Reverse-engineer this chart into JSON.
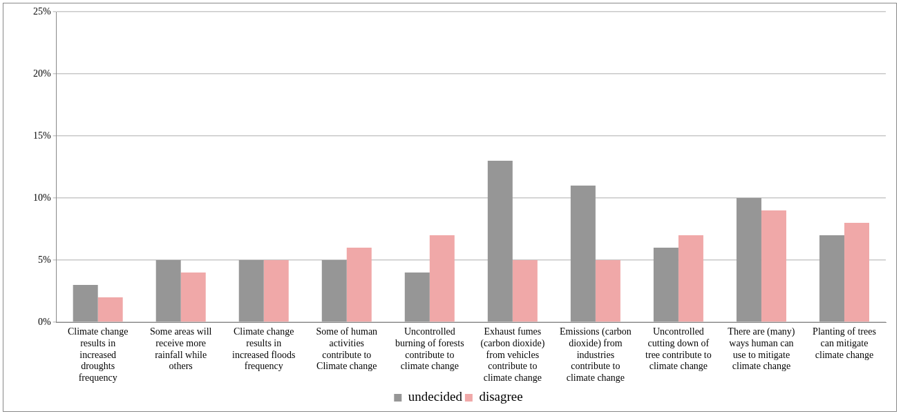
{
  "chart_data": {
    "type": "bar",
    "categories": [
      "Climate change results in increased droughts frequency",
      "Some areas will receive more rainfall while others",
      "Climate change results in increased floods frequency",
      "Some of human activities contribute to Climate change",
      "Uncontrolled burning of forests contribute to climate change",
      "Exhaust fumes (carbon dioxide) from vehicles contribute to climate change",
      "Emissions (carbon dioxide) from industries contribute to climate change",
      "Uncontrolled cutting down of tree contribute to climate change",
      "There are (many) ways human can use to mitigate climate change",
      "Planting of trees can mitigate climate change"
    ],
    "series": [
      {
        "name": "undecided",
        "color": "#969696",
        "values": [
          3,
          5,
          5,
          5,
          4,
          13,
          11,
          6,
          10,
          7
        ]
      },
      {
        "name": "disagree",
        "color": "#f0a8a8",
        "values": [
          2,
          4,
          5,
          6,
          7,
          5,
          5,
          7,
          9,
          8
        ]
      }
    ],
    "ylim": [
      0,
      25
    ],
    "yticks": [
      {
        "value": 0,
        "label": "0%"
      },
      {
        "value": 5,
        "label": "5%"
      },
      {
        "value": 10,
        "label": "10%"
      },
      {
        "value": 15,
        "label": "15%"
      },
      {
        "value": 20,
        "label": "20%"
      },
      {
        "value": 25,
        "label": "25%"
      }
    ],
    "grid": "y",
    "legend": "bottom"
  }
}
